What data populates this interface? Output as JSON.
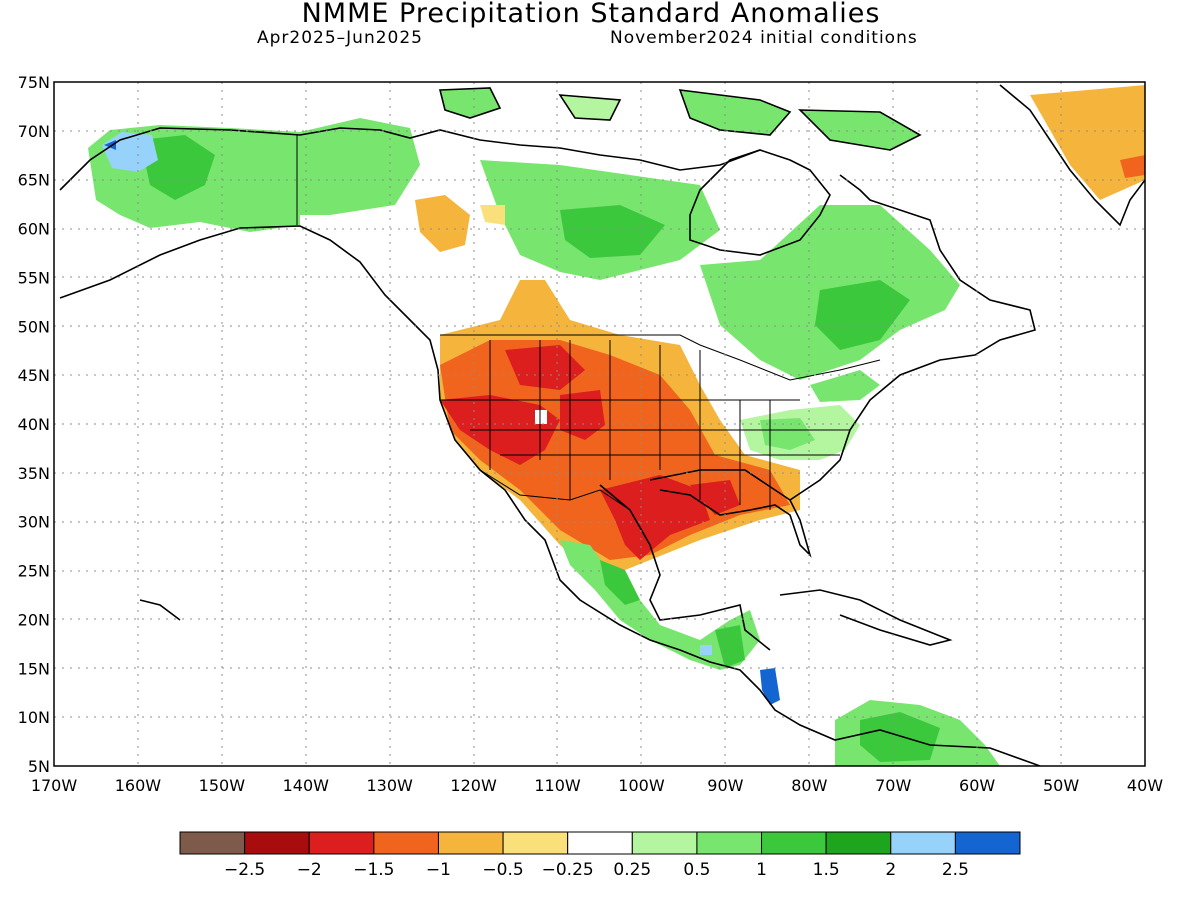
{
  "title": "NMME Precipitation Standard Anomalies",
  "subtitle_left": "Apr2025–Jun2025",
  "subtitle_right": "November2024 initial conditions",
  "map": {
    "lat_labels": [
      "75N",
      "70N",
      "65N",
      "60N",
      "55N",
      "50N",
      "45N",
      "40N",
      "35N",
      "30N",
      "25N",
      "20N",
      "15N",
      "10N",
      "5N"
    ],
    "lon_labels": [
      "170W",
      "160W",
      "150W",
      "140W",
      "130W",
      "120W",
      "110W",
      "100W",
      "90W",
      "80W",
      "70W",
      "60W",
      "50W",
      "40W"
    ],
    "lat_range": [
      5,
      75
    ],
    "lon_range": [
      -170,
      -40
    ],
    "grid": "dotted"
  },
  "colorbar": {
    "labels": [
      "−2.5",
      "−2",
      "−1.5",
      "−1",
      "−0.5",
      "−0.25",
      "0.25",
      "0.5",
      "1",
      "1.5",
      "2",
      "2.5"
    ],
    "colors": [
      "#7e5a4a",
      "#a80c0c",
      "#dc1e1e",
      "#f0641e",
      "#f5b43c",
      "#fae07a",
      "#ffffff",
      "#b4f5a0",
      "#78e66e",
      "#3cc83c",
      "#1ea51e",
      "#96d2fa",
      "#1464d2"
    ]
  }
}
